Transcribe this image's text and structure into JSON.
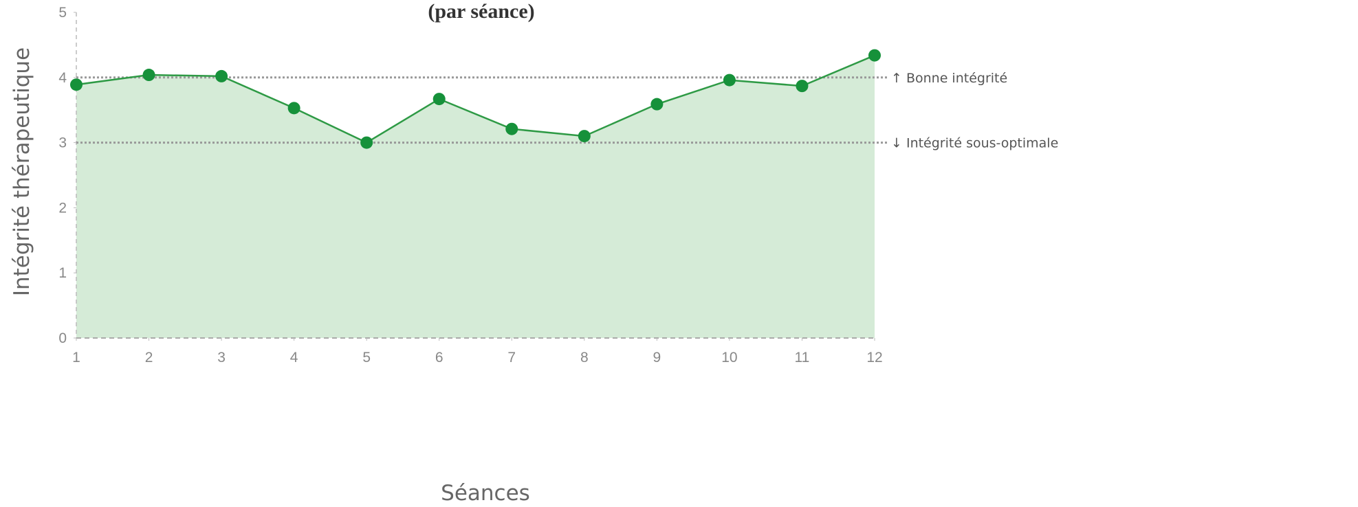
{
  "chart_data": {
    "type": "area",
    "title": "(par séance)",
    "x_label": "Séances",
    "y_label": "Intégrité thérapeutique",
    "x": [
      1,
      2,
      3,
      4,
      5,
      6,
      7,
      8,
      9,
      10,
      11,
      12
    ],
    "values": [
      3.89,
      4.04,
      4.02,
      3.53,
      3.0,
      3.67,
      3.21,
      3.1,
      3.59,
      3.96,
      3.87,
      4.34
    ],
    "color": "#2e9a45",
    "marker_color": "#16913a",
    "fill_color": "#d5ebd7",
    "xlim": [
      1,
      12
    ],
    "xticks": [
      1,
      2,
      3,
      4,
      5,
      6,
      7,
      8,
      9,
      10,
      11,
      12
    ],
    "ylim": [
      0,
      5
    ],
    "yticks": [
      0,
      1,
      2,
      3,
      4,
      5
    ],
    "reference_lines": [
      {
        "value": 4,
        "label": "↑ Bonne intégrité"
      },
      {
        "value": 3,
        "label": "↓ Intégrité sous-optimale"
      }
    ]
  }
}
